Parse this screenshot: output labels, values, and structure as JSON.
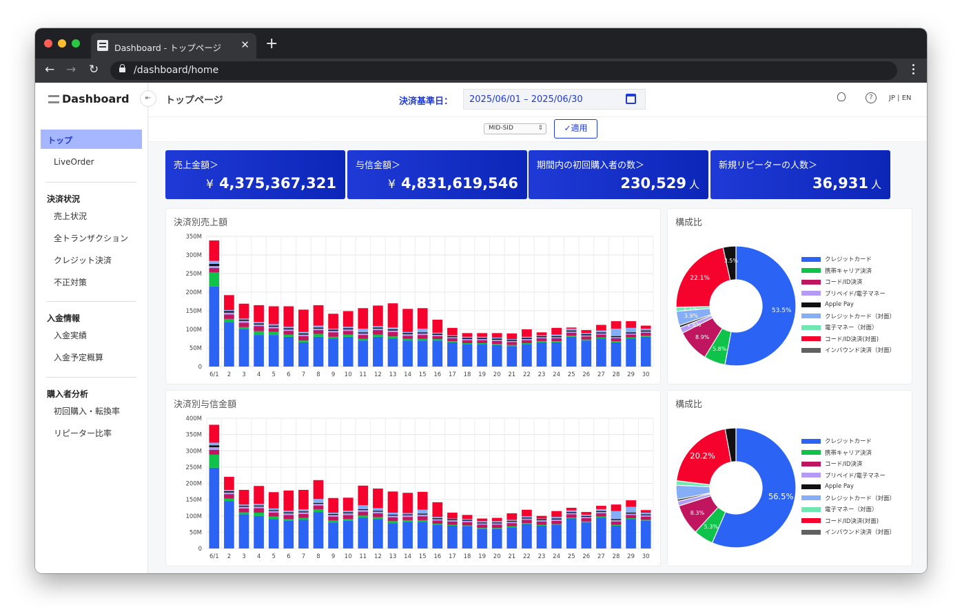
{
  "browser": {
    "tab_title": "Dashboard - トップページ",
    "url": "/dashboard/home",
    "close_glyph": "✕",
    "newtab_glyph": "+",
    "back_glyph": "←",
    "forward_glyph": "→",
    "reload_glyph": "↻"
  },
  "app": {
    "brand": "Dashboard",
    "collapse_glyph": "⇤"
  },
  "sidebar": {
    "active": "トップ",
    "liveorder": "LiveOrder",
    "sections": [
      {
        "heading": "決済状況",
        "items": [
          "売上状況",
          "全トランザクション",
          "クレジット決済",
          "不正対策"
        ]
      },
      {
        "heading": "入金情報",
        "items": [
          "入金実績",
          "入金予定概算"
        ]
      },
      {
        "heading": "購入者分析",
        "items": [
          "初回購入・転換率",
          "リピーター比率"
        ]
      }
    ]
  },
  "header": {
    "page_title": "トップページ",
    "date_label": "決済基準日：",
    "date_range": "2025/06/01 – 2025/06/30",
    "help_glyph": "?",
    "lang": "JP | EN"
  },
  "filter": {
    "mid_select": "MID-SID",
    "apply_label": "✓適用"
  },
  "kpis": [
    {
      "label": "売上金額＞",
      "prefix": "¥",
      "value": "4,375,367,321",
      "unit": ""
    },
    {
      "label": "与信金額＞",
      "prefix": "¥",
      "value": "4,831,619,546",
      "unit": ""
    },
    {
      "label": "期間内の初回購入者の数＞",
      "prefix": "",
      "value": "230,529",
      "unit": "人"
    },
    {
      "label": "新規リピーターの人数＞",
      "prefix": "",
      "value": "36,931",
      "unit": "人"
    }
  ],
  "legend_items": [
    {
      "name": "クレジットカード",
      "color": "#2b63f5"
    },
    {
      "name": "携帯キャリア決済",
      "color": "#0ec24a"
    },
    {
      "name": "コード/ID決済",
      "color": "#c0165f"
    },
    {
      "name": "プリペイド/電子マネー",
      "color": "#b49cf6"
    },
    {
      "name": "Apple Pay",
      "color": "#111111"
    },
    {
      "name": "クレジットカード（対面）",
      "color": "#86aef7"
    },
    {
      "name": "電子マネー（対面）",
      "color": "#6ee7b3"
    },
    {
      "name": "コード/ID決済(対面)",
      "color": "#f5022d"
    },
    {
      "name": "インバウンド決済（対面）",
      "color": "#616161"
    }
  ],
  "chart_data": [
    {
      "type": "bar",
      "stacked": true,
      "title": "決済別売上額",
      "categories": [
        "6/1",
        "2",
        "3",
        "4",
        "5",
        "6",
        "7",
        "8",
        "9",
        "10",
        "11",
        "12",
        "13",
        "14",
        "15",
        "16",
        "17",
        "18",
        "19",
        "20",
        "21",
        "22",
        "23",
        "24",
        "25",
        "26",
        "27",
        "28",
        "29",
        "30"
      ],
      "yticks": [
        "0",
        "50M",
        "100M",
        "150M",
        "200M",
        "250M",
        "300M",
        "350M"
      ],
      "ylim": [
        0,
        350
      ],
      "grid": true,
      "series": [
        {
          "name": "クレジットカード",
          "values": [
            215,
            120,
            100,
            85,
            85,
            80,
            65,
            80,
            75,
            80,
            70,
            80,
            75,
            70,
            70,
            70,
            65,
            60,
            60,
            58,
            55,
            60,
            65,
            65,
            80,
            70,
            75,
            65,
            75,
            80
          ]
        },
        {
          "name": "携帯キャリア決済",
          "values": [
            38,
            8,
            6,
            10,
            8,
            6,
            5,
            8,
            5,
            6,
            5,
            6,
            6,
            5,
            5,
            4,
            3,
            3,
            3,
            3,
            3,
            3,
            3,
            3,
            3,
            3,
            3,
            3,
            3,
            3
          ]
        },
        {
          "name": "コード/ID決済",
          "values": [
            12,
            12,
            12,
            14,
            10,
            10,
            12,
            10,
            12,
            10,
            10,
            12,
            12,
            8,
            10,
            8,
            8,
            8,
            8,
            8,
            8,
            8,
            8,
            8,
            8,
            8,
            8,
            8,
            8,
            8
          ]
        },
        {
          "name": "プリペイド/電子マネー",
          "values": [
            5,
            5,
            5,
            4,
            4,
            4,
            4,
            4,
            4,
            4,
            4,
            4,
            4,
            4,
            4,
            3,
            3,
            3,
            3,
            3,
            3,
            3,
            3,
            3,
            3,
            3,
            3,
            3,
            3,
            3
          ]
        },
        {
          "name": "Apple Pay",
          "values": [
            6,
            4,
            3,
            3,
            3,
            3,
            3,
            3,
            3,
            3,
            3,
            3,
            3,
            3,
            3,
            3,
            3,
            3,
            3,
            3,
            3,
            3,
            3,
            3,
            3,
            3,
            3,
            3,
            3,
            3
          ]
        },
        {
          "name": "クレジットカード（対面）",
          "values": [
            8,
            3,
            3,
            4,
            4,
            4,
            4,
            5,
            3,
            4,
            10,
            4,
            5,
            3,
            10,
            3,
            2,
            3,
            3,
            3,
            2,
            3,
            2,
            4,
            5,
            3,
            5,
            20,
            12,
            5
          ]
        },
        {
          "name": "電子マネー（対面）",
          "values": [
            0,
            0,
            0,
            0,
            0,
            0,
            0,
            0,
            0,
            0,
            0,
            0,
            0,
            0,
            0,
            0,
            0,
            0,
            0,
            0,
            0,
            0,
            0,
            0,
            0,
            0,
            0,
            0,
            0,
            0
          ]
        },
        {
          "name": "コード/ID決済(対面)",
          "values": [
            55,
            40,
            40,
            45,
            48,
            55,
            60,
            55,
            40,
            42,
            55,
            55,
            65,
            62,
            55,
            35,
            20,
            10,
            10,
            12,
            15,
            20,
            8,
            18,
            3,
            8,
            15,
            20,
            18,
            8
          ]
        },
        {
          "name": "インバウンド決済（対面）",
          "values": [
            0,
            0,
            0,
            0,
            0,
            0,
            0,
            0,
            0,
            0,
            0,
            0,
            0,
            0,
            0,
            0,
            0,
            0,
            0,
            0,
            0,
            0,
            0,
            0,
            0,
            0,
            0,
            0,
            0,
            0
          ]
        }
      ]
    },
    {
      "type": "pie",
      "donut": true,
      "title": "構成比",
      "slices": [
        {
          "name": "クレジットカード",
          "value": 53.5,
          "label": "53.5%"
        },
        {
          "name": "携帯キャリア決済",
          "value": 5.8,
          "label": "5.8%"
        },
        {
          "name": "コード/ID決済",
          "value": 8.9,
          "label": "8.9%"
        },
        {
          "name": "プリペイド/電子マネー",
          "value": 1.6,
          "label": "1.6%"
        },
        {
          "name": "Apple Pay",
          "value": 0.6,
          "label": ""
        },
        {
          "name": "クレジットカード（対面）",
          "value": 3.9,
          "label": "3.9%"
        },
        {
          "name": "電子マネー（対面）",
          "value": 1.1,
          "label": "1.1%"
        },
        {
          "name": "コード/ID決済(対面)",
          "value": 22.1,
          "label": "22.1%"
        },
        {
          "name": "インバウンド決済（対面）",
          "value": 0.0,
          "label": ""
        },
        {
          "name": "Apple Pay",
          "value": 3.5,
          "label": "3.5%"
        }
      ]
    },
    {
      "type": "bar",
      "stacked": true,
      "title": "決済別与信金額",
      "categories": [
        "6/1",
        "2",
        "3",
        "4",
        "5",
        "6",
        "7",
        "8",
        "9",
        "10",
        "11",
        "12",
        "13",
        "14",
        "15",
        "16",
        "17",
        "18",
        "19",
        "20",
        "21",
        "22",
        "23",
        "24",
        "25",
        "26",
        "27",
        "28",
        "29",
        "30"
      ],
      "yticks": [
        "0",
        "50M",
        "100M",
        "150M",
        "200M",
        "250M",
        "300M",
        "350M",
        "400M"
      ],
      "ylim": [
        0,
        400
      ],
      "grid": true,
      "series": [
        {
          "name": "クレジットカード",
          "values": [
            248,
            145,
            105,
            100,
            90,
            85,
            88,
            112,
            80,
            85,
            95,
            90,
            78,
            82,
            82,
            72,
            70,
            68,
            60,
            60,
            65,
            75,
            70,
            72,
            92,
            80,
            95,
            70,
            90,
            85
          ]
        },
        {
          "name": "携帯キャリア決済",
          "values": [
            40,
            8,
            6,
            10,
            8,
            6,
            6,
            8,
            6,
            6,
            6,
            6,
            6,
            5,
            5,
            4,
            3,
            3,
            3,
            3,
            3,
            3,
            3,
            3,
            3,
            3,
            3,
            3,
            3,
            3
          ]
        },
        {
          "name": "コード/ID決済",
          "values": [
            15,
            14,
            12,
            14,
            12,
            12,
            12,
            12,
            12,
            12,
            12,
            12,
            12,
            10,
            12,
            10,
            10,
            10,
            10,
            10,
            10,
            10,
            10,
            10,
            10,
            10,
            10,
            10,
            10,
            10
          ]
        },
        {
          "name": "プリペイド/電子マネー",
          "values": [
            8,
            5,
            5,
            5,
            5,
            5,
            5,
            5,
            5,
            5,
            5,
            5,
            5,
            5,
            5,
            4,
            4,
            4,
            4,
            4,
            4,
            4,
            4,
            4,
            4,
            4,
            4,
            4,
            4,
            4
          ]
        },
        {
          "name": "Apple Pay",
          "values": [
            6,
            4,
            3,
            3,
            3,
            3,
            3,
            3,
            3,
            3,
            3,
            3,
            3,
            3,
            3,
            3,
            3,
            3,
            3,
            3,
            3,
            3,
            3,
            3,
            3,
            3,
            3,
            3,
            3,
            3
          ]
        },
        {
          "name": "クレジットカード（対面）",
          "values": [
            8,
            4,
            4,
            5,
            5,
            5,
            6,
            12,
            4,
            5,
            12,
            8,
            6,
            4,
            12,
            4,
            2,
            3,
            4,
            4,
            3,
            4,
            2,
            5,
            5,
            4,
            6,
            25,
            18,
            5
          ]
        },
        {
          "name": "電子マネー（対面）",
          "values": [
            0,
            0,
            0,
            0,
            0,
            0,
            0,
            0,
            0,
            0,
            0,
            0,
            0,
            0,
            0,
            0,
            0,
            0,
            0,
            0,
            0,
            0,
            0,
            0,
            0,
            0,
            0,
            0,
            0,
            0
          ]
        },
        {
          "name": "コード/ID決済(対面)",
          "values": [
            55,
            40,
            45,
            55,
            50,
            62,
            60,
            58,
            45,
            40,
            60,
            60,
            65,
            62,
            55,
            45,
            18,
            12,
            8,
            10,
            20,
            20,
            8,
            18,
            8,
            8,
            10,
            20,
            20,
            8
          ]
        },
        {
          "name": "インバウンド決済（対面）",
          "values": [
            0,
            0,
            0,
            0,
            0,
            0,
            0,
            0,
            0,
            0,
            0,
            0,
            0,
            0,
            0,
            0,
            0,
            0,
            0,
            0,
            0,
            0,
            0,
            0,
            0,
            0,
            0,
            0,
            0,
            0
          ]
        }
      ]
    },
    {
      "type": "pie",
      "donut": true,
      "title": "構成比",
      "slices": [
        {
          "name": "クレジットカード",
          "value": 56.5,
          "label": "56.5%"
        },
        {
          "name": "携帯キャリア決済",
          "value": 5.3,
          "label": "5.3%"
        },
        {
          "name": "コード/ID決済",
          "value": 8.3,
          "label": "8.3%"
        },
        {
          "name": "プリペイド/電子マネー",
          "value": 1.3,
          "label": ""
        },
        {
          "name": "Apple Pay",
          "value": 0.5,
          "label": ""
        },
        {
          "name": "クレジットカード（対面）",
          "value": 3.8,
          "label": ""
        },
        {
          "name": "電子マネー（対面）",
          "value": 1.2,
          "label": ""
        },
        {
          "name": "コード/ID決済(対面)",
          "value": 20.2,
          "label": "20.2%"
        },
        {
          "name": "インバウンド決済（対面）",
          "value": 0.0,
          "label": ""
        },
        {
          "name": "Apple Pay",
          "value": 2.9,
          "label": ""
        }
      ]
    }
  ]
}
